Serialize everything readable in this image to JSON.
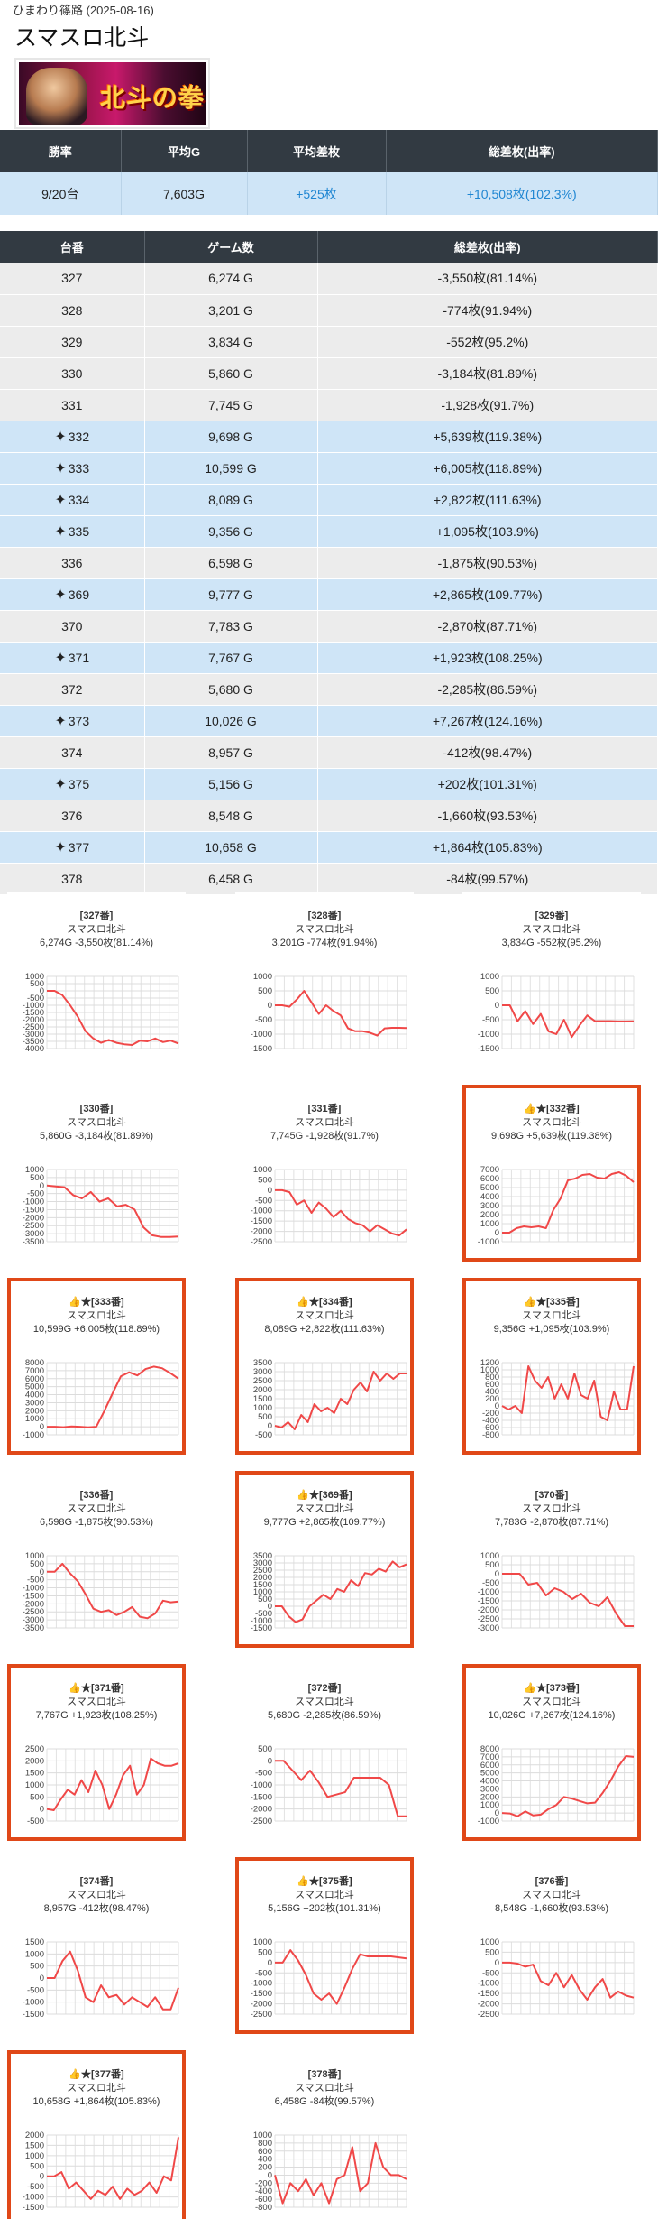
{
  "header": {
    "meta": "ひまわり篠路 (2025-08-16)",
    "title": "スマスロ北斗",
    "banner_text": "北斗の拳"
  },
  "summary": {
    "headers": [
      "勝率",
      "平均G",
      "平均差枚",
      "総差枚(出率)"
    ],
    "values": [
      "9/20台",
      "7,603G",
      "+525枚",
      "+10,508枚(102.3%)"
    ]
  },
  "machines": {
    "headers": [
      "台番",
      "ゲーム数",
      "総差枚(出率)"
    ],
    "rows": [
      {
        "no": "327",
        "games": "6,274 G",
        "diff": "-3,550枚(81.14%)",
        "win": false
      },
      {
        "no": "328",
        "games": "3,201 G",
        "diff": "-774枚(91.94%)",
        "win": false
      },
      {
        "no": "329",
        "games": "3,834 G",
        "diff": "-552枚(95.2%)",
        "win": false
      },
      {
        "no": "330",
        "games": "5,860 G",
        "diff": "-3,184枚(81.89%)",
        "win": false
      },
      {
        "no": "331",
        "games": "7,745 G",
        "diff": "-1,928枚(91.7%)",
        "win": false
      },
      {
        "no": "332",
        "games": "9,698 G",
        "diff": "+5,639枚(119.38%)",
        "win": true
      },
      {
        "no": "333",
        "games": "10,599 G",
        "diff": "+6,005枚(118.89%)",
        "win": true
      },
      {
        "no": "334",
        "games": "8,089 G",
        "diff": "+2,822枚(111.63%)",
        "win": true
      },
      {
        "no": "335",
        "games": "9,356 G",
        "diff": "+1,095枚(103.9%)",
        "win": true
      },
      {
        "no": "336",
        "games": "6,598 G",
        "diff": "-1,875枚(90.53%)",
        "win": false
      },
      {
        "no": "369",
        "games": "9,777 G",
        "diff": "+2,865枚(109.77%)",
        "win": true
      },
      {
        "no": "370",
        "games": "7,783 G",
        "diff": "-2,870枚(87.71%)",
        "win": false
      },
      {
        "no": "371",
        "games": "7,767 G",
        "diff": "+1,923枚(108.25%)",
        "win": true
      },
      {
        "no": "372",
        "games": "5,680 G",
        "diff": "-2,285枚(86.59%)",
        "win": false
      },
      {
        "no": "373",
        "games": "10,026 G",
        "diff": "+7,267枚(124.16%)",
        "win": true
      },
      {
        "no": "374",
        "games": "8,957 G",
        "diff": "-412枚(98.47%)",
        "win": false
      },
      {
        "no": "375",
        "games": "5,156 G",
        "diff": "+202枚(101.31%)",
        "win": true
      },
      {
        "no": "376",
        "games": "8,548 G",
        "diff": "-1,660枚(93.53%)",
        "win": false
      },
      {
        "no": "377",
        "games": "10,658 G",
        "diff": "+1,864枚(105.83%)",
        "win": true
      },
      {
        "no": "378",
        "games": "6,458 G",
        "diff": "-84枚(99.57%)",
        "win": false
      }
    ]
  },
  "colors": {
    "line": "#f04848",
    "highlight": "#e04818",
    "win_row": "#cfe5f7",
    "plain_row": "#ececec",
    "header": "#323a42"
  },
  "chart_data": [
    {
      "type": "line",
      "label": "[327番]",
      "machine": "スマスロ北斗",
      "stats": "6,274G -3,550枚(81.14%)",
      "win": false,
      "yticks": [
        1000,
        500,
        0,
        -500,
        -1000,
        -1500,
        -2000,
        -2500,
        -3000,
        -3500,
        -4000
      ],
      "ylim": [
        -4000,
        1000
      ],
      "values": [
        0,
        0,
        -300,
        -1000,
        -1800,
        -2800,
        -3300,
        -3600,
        -3400,
        -3600,
        -3700,
        -3750,
        -3450,
        -3500,
        -3300,
        -3550,
        -3450,
        -3650
      ]
    },
    {
      "type": "line",
      "label": "[328番]",
      "machine": "スマスロ北斗",
      "stats": "3,201G -774枚(91.94%)",
      "win": false,
      "yticks": [
        1000,
        500,
        0,
        -500,
        -1000,
        -1500
      ],
      "ylim": [
        -1500,
        1000
      ],
      "values": [
        0,
        0,
        -50,
        200,
        500,
        100,
        -300,
        0,
        -200,
        -350,
        -800,
        -900,
        -900,
        -950,
        -1050,
        -800,
        -780,
        -780,
        -790
      ]
    },
    {
      "type": "line",
      "label": "[329番]",
      "machine": "スマスロ北斗",
      "stats": "3,834G -552枚(95.2%)",
      "win": false,
      "yticks": [
        1000,
        500,
        0,
        -500,
        -1000,
        -1500
      ],
      "ylim": [
        -1500,
        1000
      ],
      "values": [
        0,
        0,
        -550,
        -200,
        -650,
        -300,
        -900,
        -1000,
        -500,
        -1100,
        -700,
        -350,
        -550,
        -550,
        -550,
        -560,
        -560,
        -552
      ]
    },
    {
      "type": "line",
      "label": "[330番]",
      "machine": "スマスロ北斗",
      "stats": "5,860G -3,184枚(81.89%)",
      "win": false,
      "yticks": [
        1000,
        500,
        0,
        -500,
        -1000,
        -1500,
        -2000,
        -2500,
        -3000,
        -3500
      ],
      "ylim": [
        -3500,
        1000
      ],
      "values": [
        0,
        -50,
        -100,
        -600,
        -800,
        -400,
        -1000,
        -800,
        -1300,
        -1200,
        -1500,
        -2600,
        -3100,
        -3200,
        -3200,
        -3180
      ]
    },
    {
      "type": "line",
      "label": "[331番]",
      "machine": "スマスロ北斗",
      "stats": "7,745G -1,928枚(91.7%)",
      "win": false,
      "yticks": [
        1000,
        500,
        0,
        -500,
        -1000,
        -1500,
        -2000,
        -2500
      ],
      "ylim": [
        -2500,
        1000
      ],
      "values": [
        0,
        0,
        -100,
        -700,
        -500,
        -1100,
        -600,
        -900,
        -1300,
        -1000,
        -1400,
        -1600,
        -1700,
        -2000,
        -1700,
        -1900,
        -2100,
        -2200,
        -1900
      ]
    },
    {
      "type": "line",
      "label": "[332番]",
      "machine": "スマスロ北斗",
      "stats": "9,698G +5,639枚(119.38%)",
      "win": true,
      "yticks": [
        7000,
        6000,
        5000,
        4000,
        3000,
        2000,
        1000,
        0,
        -1000
      ],
      "ylim": [
        -1000,
        7000
      ],
      "values": [
        0,
        0,
        500,
        700,
        600,
        700,
        500,
        2500,
        3800,
        5800,
        6000,
        6400,
        6500,
        6100,
        6000,
        6500,
        6700,
        6300,
        5600
      ]
    },
    {
      "type": "line",
      "label": "[333番]",
      "machine": "スマスロ北斗",
      "stats": "10,599G +6,005枚(118.89%)",
      "win": true,
      "yticks": [
        8000,
        7000,
        6000,
        5000,
        4000,
        3000,
        2000,
        1000,
        0,
        -1000
      ],
      "ylim": [
        -1000,
        8000
      ],
      "values": [
        0,
        0,
        -50,
        50,
        0,
        -80,
        0,
        2000,
        4200,
        6300,
        6800,
        6400,
        7200,
        7500,
        7300,
        6700,
        6000
      ]
    },
    {
      "type": "line",
      "label": "[334番]",
      "machine": "スマスロ北斗",
      "stats": "8,089G +2,822枚(111.63%)",
      "win": true,
      "yticks": [
        3500,
        3000,
        2500,
        2000,
        1500,
        1000,
        500,
        0,
        -500
      ],
      "ylim": [
        -500,
        3500
      ],
      "values": [
        0,
        -100,
        200,
        -200,
        600,
        200,
        1200,
        800,
        1000,
        700,
        1500,
        1200,
        2000,
        2400,
        1900,
        3000,
        2500,
        2900,
        2600,
        2900,
        2900
      ]
    },
    {
      "type": "line",
      "label": "[335番]",
      "machine": "スマスロ北斗",
      "stats": "9,356G +1,095枚(103.9%)",
      "win": true,
      "yticks": [
        1200,
        1000,
        800,
        600,
        400,
        200,
        0,
        -200,
        -400,
        -600,
        -800
      ],
      "ylim": [
        -800,
        1200
      ],
      "values": [
        0,
        -100,
        0,
        -200,
        1100,
        700,
        500,
        800,
        200,
        600,
        200,
        900,
        300,
        200,
        700,
        -300,
        -400,
        400,
        -100,
        -100,
        1100
      ]
    },
    {
      "type": "line",
      "label": "[336番]",
      "machine": "スマスロ北斗",
      "stats": "6,598G -1,875枚(90.53%)",
      "win": false,
      "yticks": [
        1000,
        500,
        0,
        -500,
        -1000,
        -1500,
        -2000,
        -2500,
        -3000,
        -3500
      ],
      "ylim": [
        -3500,
        1000
      ],
      "values": [
        0,
        0,
        500,
        -100,
        -600,
        -1400,
        -2300,
        -2500,
        -2400,
        -2700,
        -2500,
        -2200,
        -2800,
        -2900,
        -2600,
        -1800,
        -1900,
        -1850
      ]
    },
    {
      "type": "line",
      "label": "[369番]",
      "machine": "スマスロ北斗",
      "stats": "9,777G +2,865枚(109.77%)",
      "win": true,
      "yticks": [
        3500,
        3000,
        2500,
        2000,
        1500,
        1000,
        500,
        0,
        -500,
        -1000,
        -1500
      ],
      "ylim": [
        -1500,
        3500
      ],
      "values": [
        0,
        0,
        -700,
        -1100,
        -900,
        0,
        400,
        800,
        500,
        1200,
        1000,
        1800,
        1400,
        2300,
        2200,
        2600,
        2400,
        3100,
        2700,
        2900
      ]
    },
    {
      "type": "line",
      "label": "[370番]",
      "machine": "スマスロ北斗",
      "stats": "7,783G -2,870枚(87.71%)",
      "win": false,
      "yticks": [
        1000,
        500,
        0,
        -500,
        -1000,
        -1500,
        -2000,
        -2500,
        -3000
      ],
      "ylim": [
        -3000,
        1000
      ],
      "values": [
        0,
        0,
        0,
        -600,
        -500,
        -1200,
        -800,
        -1000,
        -1400,
        -1100,
        -1600,
        -1800,
        -1300,
        -2200,
        -2900,
        -2900
      ]
    },
    {
      "type": "line",
      "label": "[371番]",
      "machine": "スマスロ北斗",
      "stats": "7,767G +1,923枚(108.25%)",
      "win": true,
      "yticks": [
        2500,
        2000,
        1500,
        1000,
        500,
        0,
        -500
      ],
      "ylim": [
        -500,
        2500
      ],
      "values": [
        0,
        -50,
        400,
        800,
        600,
        1200,
        700,
        1600,
        1000,
        0,
        600,
        1400,
        1800,
        600,
        1000,
        2100,
        1900,
        1800,
        1800,
        1900
      ]
    },
    {
      "type": "line",
      "label": "[372番]",
      "machine": "スマスロ北斗",
      "stats": "5,680G -2,285枚(86.59%)",
      "win": false,
      "yticks": [
        500,
        0,
        -500,
        -1000,
        -1500,
        -2000,
        -2500
      ],
      "ylim": [
        -2500,
        500
      ],
      "values": [
        0,
        0,
        -400,
        -800,
        -400,
        -900,
        -1500,
        -1400,
        -1300,
        -700,
        -700,
        -700,
        -700,
        -1000,
        -2300,
        -2300
      ]
    },
    {
      "type": "line",
      "label": "[373番]",
      "machine": "スマスロ北斗",
      "stats": "10,026G +7,267枚(124.16%)",
      "win": true,
      "yticks": [
        8000,
        7000,
        6000,
        5000,
        4000,
        3000,
        2000,
        1000,
        0,
        -1000
      ],
      "ylim": [
        -1000,
        8000
      ],
      "values": [
        0,
        -50,
        -400,
        200,
        -300,
        -200,
        500,
        1000,
        2000,
        1800,
        1500,
        1200,
        1300,
        2500,
        4000,
        5800,
        7100,
        7000
      ]
    },
    {
      "type": "line",
      "label": "[374番]",
      "machine": "スマスロ北斗",
      "stats": "8,957G -412枚(98.47%)",
      "win": false,
      "yticks": [
        1500,
        1000,
        500,
        0,
        -500,
        -1000,
        -1500
      ],
      "ylim": [
        -1500,
        1500
      ],
      "values": [
        0,
        0,
        700,
        1100,
        300,
        -800,
        -1000,
        -300,
        -800,
        -700,
        -1100,
        -800,
        -1000,
        -1200,
        -800,
        -1300,
        -1300,
        -400
      ]
    },
    {
      "type": "line",
      "label": "[375番]",
      "machine": "スマスロ北斗",
      "stats": "5,156G +202枚(101.31%)",
      "win": true,
      "yticks": [
        1000,
        500,
        0,
        -500,
        -1000,
        -1500,
        -2000,
        -2500
      ],
      "ylim": [
        -2500,
        1000
      ],
      "values": [
        0,
        0,
        600,
        100,
        -600,
        -1500,
        -1800,
        -1500,
        -2000,
        -1200,
        -300,
        400,
        300,
        300,
        300,
        300,
        250,
        200
      ]
    },
    {
      "type": "line",
      "label": "[376番]",
      "machine": "スマスロ北斗",
      "stats": "8,548G -1,660枚(93.53%)",
      "win": false,
      "yticks": [
        1000,
        500,
        0,
        -500,
        -1000,
        -1500,
        -2000,
        -2500
      ],
      "ylim": [
        -2500,
        1000
      ],
      "values": [
        0,
        0,
        -50,
        -200,
        -100,
        -900,
        -1100,
        -500,
        -1200,
        -600,
        -1300,
        -1800,
        -1200,
        -800,
        -1700,
        -1400,
        -1600,
        -1700
      ]
    },
    {
      "type": "line",
      "label": "[377番]",
      "machine": "スマスロ北斗",
      "stats": "10,658G +1,864枚(105.83%)",
      "win": true,
      "yticks": [
        2000,
        1500,
        1000,
        500,
        0,
        -500,
        -1000,
        -1500
      ],
      "ylim": [
        -1500,
        2000
      ],
      "values": [
        0,
        0,
        200,
        -600,
        -300,
        -700,
        -1100,
        -700,
        -900,
        -500,
        -1100,
        -600,
        -900,
        -700,
        -300,
        -800,
        0,
        -200,
        1900
      ]
    },
    {
      "type": "line",
      "label": "[378番]",
      "machine": "スマスロ北斗",
      "stats": "6,458G -84枚(99.57%)",
      "win": false,
      "yticks": [
        1000,
        800,
        600,
        400,
        200,
        0,
        -200,
        -400,
        -600,
        -800
      ],
      "ylim": [
        -800,
        1000
      ],
      "values": [
        0,
        -700,
        -200,
        -400,
        -100,
        -500,
        -200,
        -700,
        -100,
        0,
        700,
        -400,
        -200,
        800,
        200,
        0,
        0,
        -100
      ]
    }
  ]
}
